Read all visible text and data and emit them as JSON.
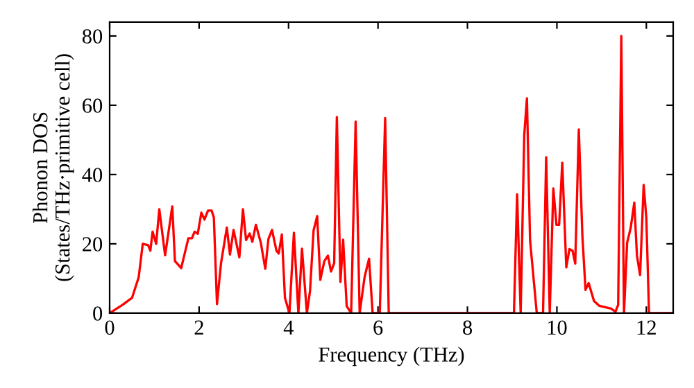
{
  "chart_data": {
    "type": "line",
    "xlabel": "Frequency (THz)",
    "ylabel": "Phonon DOS\n(States/THz·primitive cell)",
    "xlim": [
      0,
      12.6
    ],
    "ylim": [
      0,
      84
    ],
    "xticks": [
      0,
      2,
      4,
      6,
      8,
      10,
      12
    ],
    "yticks": [
      0,
      20,
      40,
      60,
      80
    ],
    "grid": false,
    "marker": "none",
    "line_style": "solid",
    "series": [
      {
        "color": "#ff0000",
        "x": [
          0,
          0.29,
          0.5,
          0.65,
          0.74,
          0.86,
          0.91,
          0.96,
          1.04,
          1.11,
          1.24,
          1.4,
          1.46,
          1.6,
          1.76,
          1.84,
          1.9,
          1.97,
          2.05,
          2.12,
          2.2,
          2.28,
          2.33,
          2.4,
          2.49,
          2.62,
          2.69,
          2.77,
          2.9,
          2.98,
          3.05,
          3.13,
          3.19,
          3.27,
          3.38,
          3.48,
          3.55,
          3.63,
          3.73,
          3.78,
          3.85,
          3.92,
          4.02,
          4.12,
          4.22,
          4.3,
          4.41,
          4.48,
          4.56,
          4.64,
          4.71,
          4.8,
          4.88,
          4.95,
          5.02,
          5.08,
          5.16,
          5.22,
          5.3,
          5.4,
          5.5,
          5.59,
          5.7,
          5.8,
          5.88,
          6.04,
          6.16,
          6.24,
          9.04,
          9.11,
          9.19,
          9.27,
          9.33,
          9.4,
          9.55,
          9.69,
          9.76,
          9.84,
          9.92,
          9.99,
          10.05,
          10.12,
          10.21,
          10.28,
          10.35,
          10.41,
          10.49,
          10.57,
          10.64,
          10.71,
          10.83,
          10.95,
          11.21,
          11.31,
          11.37,
          11.44,
          11.5,
          11.57,
          11.65,
          11.73,
          11.79,
          11.86,
          11.94,
          12.0,
          12.06,
          12.6
        ],
        "values": [
          0,
          2.4,
          4.4,
          10.4,
          20,
          19.6,
          18,
          23.5,
          20,
          30,
          16.7,
          30.8,
          15,
          13,
          21.6,
          21.6,
          23.5,
          22.9,
          29,
          27,
          29.6,
          29.6,
          27.6,
          2.6,
          14.4,
          24.7,
          16.9,
          24,
          16.1,
          30,
          21.1,
          23,
          20.6,
          25.5,
          20.3,
          12.8,
          21.4,
          24,
          18,
          17.2,
          22.7,
          4.4,
          0,
          23.2,
          0,
          18.6,
          0,
          6.4,
          23.9,
          28,
          9.6,
          15,
          16.6,
          12,
          14.4,
          56.6,
          9,
          21.2,
          2,
          0,
          55.3,
          0,
          10.4,
          15.7,
          0,
          0,
          56.3,
          0,
          0,
          34.3,
          0,
          51.4,
          62,
          21,
          0,
          0,
          45,
          0,
          36,
          25.5,
          25.5,
          43.4,
          13.2,
          18.5,
          18,
          14.3,
          53,
          22.3,
          6.7,
          8.7,
          3.5,
          2.1,
          1.3,
          0.4,
          2.4,
          80,
          0,
          20.3,
          24.6,
          31.9,
          16.6,
          11,
          37,
          27.4,
          0,
          0
        ]
      }
    ]
  }
}
